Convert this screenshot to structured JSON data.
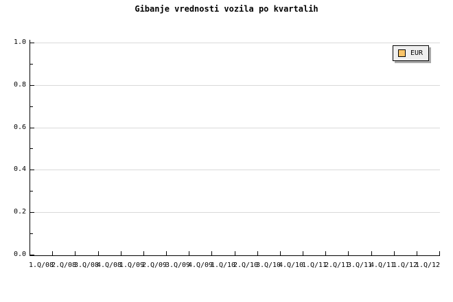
{
  "page": {
    "background": "#ffffff"
  },
  "chart_data": {
    "type": "line",
    "title": "Gibanje vrednosti vozila po kvartalih",
    "xlabel": "",
    "ylabel": "",
    "categories": [
      "1.Q/08",
      "2.Q/08",
      "3.Q/08",
      "4.Q/08",
      "1.Q/09",
      "2.Q/09",
      "3.Q/09",
      "4.Q/09",
      "1.Q/10",
      "2.Q/10",
      "3.Q/10",
      "4.Q/10",
      "1.Q/11",
      "2.Q/11",
      "3.Q/11",
      "4.Q/11",
      "1.Q/12",
      "1.Q/12"
    ],
    "series": [
      {
        "name": "EUR",
        "color": "#F9C468",
        "values": []
      }
    ],
    "ylim": [
      0,
      1.05
    ],
    "yticks": [
      0.0,
      0.2,
      0.4,
      0.6,
      0.8,
      1.0
    ],
    "ytick_labels": [
      "0.0",
      "0.2",
      "0.4",
      "0.6",
      "0.8",
      "1.0"
    ],
    "minor_tick_step": 0.1,
    "grid": "horizontal-major-only",
    "gridline_color": "#d9d9d9",
    "axis_color": "#000000",
    "legend": {
      "position": "top-right",
      "entries": [
        {
          "label": "EUR",
          "color": "#F9C468"
        }
      ]
    }
  }
}
